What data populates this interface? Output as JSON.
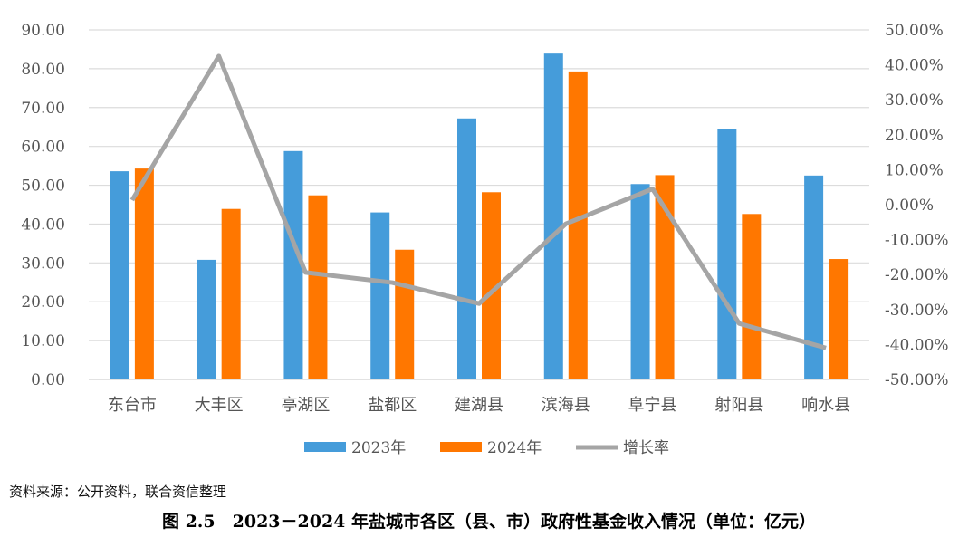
{
  "chart_data": {
    "type": "bar",
    "categories": [
      "东台市",
      "大丰区",
      "亭湖区",
      "盐都区",
      "建湖县",
      "滨海县",
      "阜宁县",
      "射阳县",
      "响水县"
    ],
    "series": [
      {
        "name": "2023年",
        "type": "bar",
        "axis": "left",
        "color": "#459CDA",
        "values": [
          53.6,
          30.8,
          58.8,
          43.0,
          67.2,
          83.9,
          50.3,
          64.5,
          52.5
        ]
      },
      {
        "name": "2024年",
        "type": "bar",
        "axis": "left",
        "color": "#FF7700",
        "values": [
          54.3,
          43.9,
          47.4,
          33.4,
          48.2,
          79.3,
          52.6,
          42.6,
          31.0
        ]
      },
      {
        "name": "增长率",
        "type": "line",
        "axis": "right",
        "color": "#A5A5A5",
        "values": [
          1.3,
          42.5,
          -19.4,
          -22.3,
          -28.3,
          -5.5,
          4.5,
          -34.0,
          -41.0
        ]
      }
    ],
    "left_axis": {
      "min": 0,
      "max": 90,
      "step": 10,
      "ticks": [
        "0.00",
        "10.00",
        "20.00",
        "30.00",
        "40.00",
        "50.00",
        "60.00",
        "70.00",
        "80.00",
        "90.00"
      ]
    },
    "right_axis": {
      "min": -50,
      "max": 50,
      "step": 10,
      "ticks": [
        "-50.00%",
        "-40.00%",
        "-30.00%",
        "-20.00%",
        "-10.00%",
        "0.00%",
        "10.00%",
        "20.00%",
        "30.00%",
        "40.00%",
        "50.00%"
      ]
    },
    "grid": true,
    "legend_position": "bottom"
  },
  "source": "资料来源：公开资料，联合资信整理",
  "caption": "图 2.5　2023－2024 年盐城市各区（县、市）政府性基金收入情况（单位：亿元）"
}
